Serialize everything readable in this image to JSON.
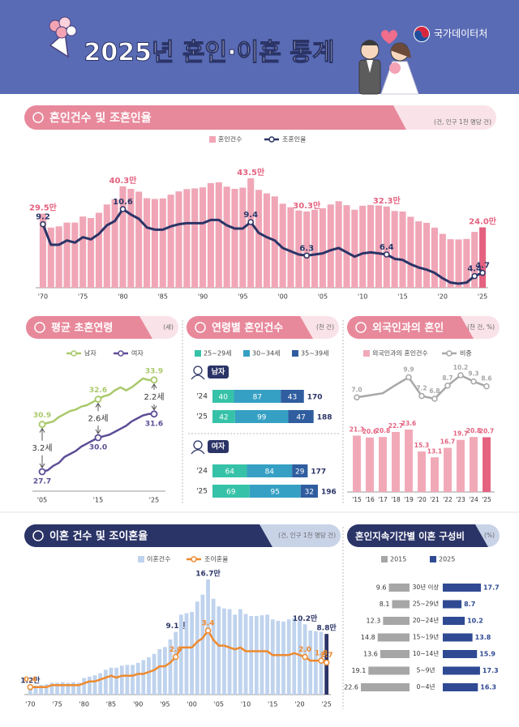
{
  "header": {
    "title": "2025년 혼인·이혼 통계",
    "org": "국가데이터처"
  },
  "chart_data": [
    {
      "type": "combo",
      "title": "혼인건수 및 조혼인율",
      "note": "(건, 인구 1천 명당 건)",
      "title_color": "#e8889b",
      "title_light": "#f9e3e8",
      "categories": [
        "'70",
        null,
        null,
        null,
        null,
        "'75",
        null,
        null,
        null,
        null,
        "'80",
        null,
        null,
        null,
        null,
        "'85",
        null,
        null,
        null,
        null,
        "'90",
        null,
        null,
        null,
        null,
        "'95",
        null,
        null,
        null,
        null,
        "'00",
        null,
        null,
        null,
        null,
        "'05",
        null,
        null,
        null,
        null,
        "'10",
        null,
        null,
        null,
        null,
        "'15",
        null,
        null,
        null,
        null,
        "'20",
        null,
        null,
        null,
        null,
        "'25"
      ],
      "series": [
        {
          "name": "혼인건수",
          "color": "#f0a6b6",
          "highlight_color": "#e4627f",
          "values": [
            29.5,
            23.9,
            24.4,
            25.9,
            25.9,
            28.3,
            27.7,
            29.8,
            33.1,
            35.2,
            40.3,
            39.3,
            38.2,
            35.6,
            35.3,
            35.5,
            37.0,
            38.3,
            39.2,
            39.5,
            39.9,
            41.6,
            41.9,
            40.2,
            39.3,
            39.8,
            43.5,
            38.9,
            37.5,
            36.3,
            33.4,
            32.0,
            30.7,
            30.3,
            31.0,
            31.6,
            33.1,
            34.4,
            32.8,
            31.0,
            32.6,
            32.9,
            32.7,
            32.3,
            30.5,
            30.3,
            28.2,
            26.4,
            25.8,
            23.9,
            21.4,
            19.3,
            19.2,
            19.4,
            22.2,
            24.0
          ],
          "value_labels": [
            "29.5만",
            null,
            null,
            null,
            null,
            null,
            null,
            null,
            null,
            null,
            "40.3만",
            null,
            null,
            null,
            null,
            null,
            null,
            null,
            null,
            null,
            null,
            null,
            null,
            null,
            null,
            null,
            "43.5만",
            null,
            null,
            null,
            null,
            null,
            null,
            "30.3만",
            null,
            null,
            null,
            null,
            null,
            null,
            null,
            null,
            null,
            "32.3만",
            null,
            null,
            null,
            null,
            null,
            null,
            null,
            null,
            null,
            null,
            null,
            "24.0만"
          ]
        },
        {
          "name": "조혼인율",
          "color": "#2b3467",
          "axis": "y2",
          "values": [
            9.2,
            7.3,
            7.3,
            7.7,
            7.5,
            8.0,
            7.8,
            8.3,
            9.1,
            9.5,
            10.6,
            10.1,
            9.7,
            8.9,
            8.7,
            8.7,
            9.0,
            9.2,
            9.3,
            9.3,
            9.3,
            9.6,
            9.6,
            9.1,
            8.8,
            8.8,
            9.4,
            8.4,
            8.0,
            7.7,
            7.0,
            6.7,
            6.4,
            6.3,
            6.4,
            6.5,
            6.8,
            7.0,
            6.6,
            6.2,
            6.5,
            6.6,
            6.5,
            6.4,
            6.0,
            5.9,
            5.5,
            5.2,
            5.0,
            4.7,
            4.2,
            3.8,
            3.7,
            3.8,
            4.4,
            4.7
          ],
          "value_labels": [
            "9.2",
            null,
            null,
            null,
            null,
            null,
            null,
            null,
            null,
            null,
            "10.6",
            null,
            null,
            null,
            null,
            null,
            null,
            null,
            null,
            null,
            null,
            null,
            null,
            null,
            null,
            null,
            "9.4",
            null,
            null,
            null,
            null,
            null,
            null,
            "6.3",
            null,
            null,
            null,
            null,
            null,
            null,
            null,
            null,
            null,
            "6.4",
            null,
            null,
            null,
            null,
            null,
            null,
            null,
            null,
            null,
            null,
            "4.4",
            "4.7"
          ]
        }
      ]
    },
    {
      "type": "line",
      "title": "평균 초혼연령",
      "note": "(세)",
      "title_color": "#e8889b",
      "title_light": "#f9e3e8",
      "categories": [
        "'05",
        null,
        null,
        null,
        null,
        null,
        null,
        null,
        null,
        null,
        "'15",
        null,
        null,
        null,
        null,
        null,
        null,
        null,
        null,
        null,
        "'25"
      ],
      "series": [
        {
          "name": "남자",
          "color": "#a9c96a",
          "values": [
            30.9,
            31.0,
            31.1,
            31.4,
            31.6,
            31.8,
            31.9,
            32.1,
            32.2,
            32.4,
            32.6,
            32.8,
            32.9,
            33.2,
            33.4,
            33.2,
            33.4,
            33.7,
            34.0,
            33.9,
            33.9
          ],
          "value_labels": [
            "30.9",
            null,
            null,
            null,
            null,
            null,
            null,
            null,
            null,
            null,
            "32.6",
            null,
            null,
            null,
            null,
            null,
            null,
            null,
            null,
            null,
            "33.9"
          ]
        },
        {
          "name": "여자",
          "color": "#5d4d96",
          "values": [
            27.7,
            27.8,
            28.1,
            28.3,
            28.7,
            28.9,
            29.1,
            29.4,
            29.6,
            29.8,
            30.0,
            30.1,
            30.2,
            30.4,
            30.6,
            30.8,
            31.1,
            31.3,
            31.5,
            31.6,
            31.6
          ],
          "value_labels": [
            "27.7",
            null,
            null,
            null,
            null,
            null,
            null,
            null,
            null,
            null,
            "30.0",
            null,
            null,
            null,
            null,
            null,
            null,
            null,
            null,
            null,
            "31.6"
          ]
        }
      ],
      "annotations": [
        "3.2세",
        "2.6세",
        "2.2세"
      ]
    },
    {
      "type": "stackedbar",
      "title": "연령별 혼인건수",
      "note": "(천 건)",
      "title_color": "#e8889b",
      "title_light": "#f9e3e8",
      "series": [
        {
          "name": "25~29세",
          "color": "#36c2a8"
        },
        {
          "name": "30~34세",
          "color": "#35a0c4"
        },
        {
          "name": "35~39세",
          "color": "#2f5d9f"
        }
      ],
      "groups": [
        {
          "name": "남자",
          "categories": [
            "'24",
            "'25"
          ],
          "values": [
            [
              40,
              87,
              43
            ],
            [
              42,
              99,
              47
            ]
          ],
          "totals": [
            170,
            188
          ]
        },
        {
          "name": "여자",
          "categories": [
            "'24",
            "'25"
          ],
          "values": [
            [
              64,
              84,
              29
            ],
            [
              69,
              95,
              32
            ]
          ],
          "totals": [
            177,
            196
          ]
        }
      ]
    },
    {
      "type": "combo",
      "title": "외국인과의 혼인",
      "note": "(천 건, %)",
      "title_color": "#e8889b",
      "title_light": "#f9e3e8",
      "categories": [
        "'15",
        "'16",
        "'17",
        "'18",
        "'19",
        "'20",
        "'21",
        "'22",
        "'23",
        "'24",
        "'25"
      ],
      "series": [
        {
          "name": "외국인과의 혼인건수",
          "color": "#f1a9b8",
          "highlight_color": "#e4627f",
          "values": [
            21.3,
            20.6,
            20.8,
            22.7,
            23.6,
            15.3,
            13.1,
            16.7,
            19.7,
            20.8,
            20.7
          ]
        },
        {
          "name": "비중",
          "color": "#a7a7a7",
          "axis": "y2",
          "values": [
            7.0,
            7.3,
            7.6,
            8.8,
            9.9,
            7.2,
            6.8,
            8.7,
            10.2,
            9.3,
            8.6
          ],
          "value_labels": [
            "7.0",
            null,
            null,
            null,
            "9.9",
            "7.2",
            "6.8",
            "8.7",
            "10.2",
            "9.3",
            "8.6"
          ]
        }
      ]
    },
    {
      "type": "combo",
      "title": "이혼 건수 및 조이혼율",
      "note": "(건, 인구 1천 명당 건)",
      "title_color": "#2b3467",
      "title_light": "#c9d3e8",
      "categories": [
        "'70",
        null,
        null,
        null,
        null,
        "'75",
        null,
        null,
        null,
        null,
        "'80",
        null,
        null,
        null,
        null,
        "'85",
        null,
        null,
        null,
        null,
        "'90",
        null,
        null,
        null,
        null,
        "'95",
        null,
        null,
        null,
        null,
        "'00",
        null,
        null,
        null,
        null,
        "'05",
        null,
        null,
        null,
        null,
        "'10",
        null,
        null,
        null,
        null,
        "'15",
        null,
        null,
        null,
        null,
        "'20",
        null,
        null,
        null,
        null,
        "'25"
      ],
      "series": [
        {
          "name": "이혼건수",
          "color": "#bfd3ee",
          "highlight_color": "#2b3467",
          "values": [
            1.2,
            1.3,
            1.4,
            1.5,
            1.7,
            1.7,
            1.8,
            1.7,
            1.8,
            1.7,
            2.4,
            2.6,
            2.8,
            3.1,
            3.6,
            3.9,
            3.9,
            4.2,
            4.3,
            4.3,
            4.6,
            5.0,
            5.4,
            5.9,
            6.6,
            6.9,
            8.0,
            9.1,
            11.6,
            11.8,
            12.0,
            13.5,
            14.5,
            16.7,
            13.9,
            12.8,
            12.5,
            12.4,
            11.6,
            12.4,
            11.7,
            11.4,
            11.4,
            11.5,
            11.6,
            10.9,
            10.7,
            10.6,
            10.9,
            11.1,
            10.7,
            10.2,
            9.3,
            9.2,
            9.1,
            8.8
          ],
          "value_labels": [
            "1.2만",
            null,
            null,
            null,
            null,
            null,
            null,
            null,
            null,
            null,
            null,
            null,
            null,
            null,
            null,
            null,
            null,
            null,
            null,
            null,
            null,
            null,
            null,
            null,
            null,
            null,
            null,
            "9.1만",
            null,
            null,
            null,
            null,
            null,
            "16.7만",
            null,
            null,
            null,
            null,
            null,
            null,
            null,
            null,
            null,
            null,
            null,
            null,
            null,
            null,
            null,
            null,
            null,
            "10.2만",
            null,
            null,
            null,
            "8.8만"
          ]
        },
        {
          "name": "조이혼율",
          "color": "#ee8a2f",
          "axis": "y2",
          "values": [
            0.4,
            0.4,
            0.4,
            0.4,
            0.5,
            0.5,
            0.5,
            0.5,
            0.5,
            0.5,
            0.6,
            0.7,
            0.7,
            0.8,
            0.9,
            1.0,
            0.9,
            1.0,
            1.0,
            1.0,
            1.1,
            1.1,
            1.2,
            1.3,
            1.5,
            1.5,
            1.7,
            2.0,
            2.5,
            2.5,
            2.5,
            2.8,
            3.0,
            3.4,
            2.9,
            2.6,
            2.6,
            2.5,
            2.4,
            2.5,
            2.3,
            2.3,
            2.3,
            2.3,
            2.3,
            2.1,
            2.1,
            2.1,
            2.1,
            2.2,
            2.1,
            2.0,
            1.8,
            1.8,
            1.8,
            1.7
          ],
          "value_labels": [
            "0.4",
            null,
            null,
            null,
            null,
            null,
            null,
            null,
            null,
            null,
            null,
            null,
            null,
            null,
            null,
            null,
            null,
            null,
            null,
            null,
            null,
            null,
            null,
            null,
            null,
            null,
            null,
            "2.0",
            null,
            null,
            null,
            null,
            null,
            "3.4",
            null,
            null,
            null,
            null,
            null,
            null,
            null,
            null,
            null,
            null,
            null,
            null,
            null,
            null,
            null,
            null,
            null,
            "2.0",
            null,
            null,
            "1.8",
            "1.7"
          ]
        }
      ]
    },
    {
      "type": "diverging",
      "title": "혼인지속기간별 이혼 구성비",
      "note": "(%)",
      "title_color": "#2b3467",
      "title_light": "#c9d3e8",
      "categories": [
        "30년 이상",
        "25~29년",
        "20~24년",
        "15~19년",
        "10~14년",
        "5~9년",
        "0~4년"
      ],
      "series": [
        {
          "name": "2015",
          "color": "#a6a6a6",
          "values": [
            9.6,
            8.1,
            12.3,
            14.8,
            13.6,
            19.1,
            22.6
          ]
        },
        {
          "name": "2025",
          "color": "#2f4a93",
          "values": [
            17.7,
            8.7,
            10.2,
            13.8,
            15.9,
            17.3,
            16.3
          ]
        }
      ]
    }
  ]
}
